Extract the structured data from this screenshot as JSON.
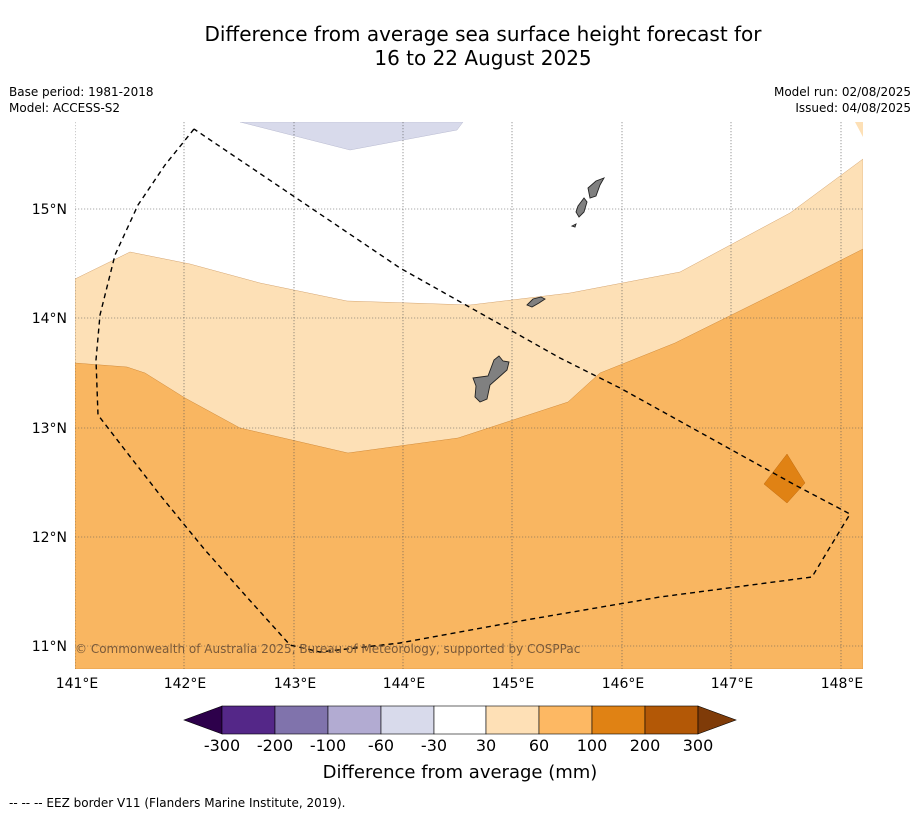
{
  "title": {
    "line1": "Difference from average sea surface height forecast for",
    "line2": "16 to 22 August 2025"
  },
  "meta_left": {
    "base_period": "Base period: 1981-2018",
    "model": "Model: ACCESS-S2"
  },
  "meta_right": {
    "model_run": "Model run: 02/08/2025",
    "issued": "Issued: 04/08/2025"
  },
  "map": {
    "lat_labels": [
      "15°N",
      "14°N",
      "13°N",
      "12°N",
      "11°N"
    ],
    "lon_labels": [
      "141°E",
      "142°E",
      "143°E",
      "144°E",
      "145°E",
      "146°E",
      "147°E",
      "148°E"
    ],
    "copyright": "© Commonwealth of Australia 2025, Bureau of Meteorology, supported by COSPPac",
    "colors": {
      "band_30_60": "#fde0b6",
      "band_60_100": "#f9b661",
      "band_100_200": "#e08214",
      "band_neg_60_30": "#d8daeb",
      "land": "#808080"
    }
  },
  "colorbar": {
    "ticks": [
      "-300",
      "-200",
      "-100",
      "-60",
      "-30",
      "30",
      "60",
      "100",
      "200",
      "300"
    ],
    "colors": [
      "#2d004b",
      "#542788",
      "#8073ac",
      "#b2abd2",
      "#d8daeb",
      "#ffffff",
      "#fee0b6",
      "#fdb863",
      "#e08214",
      "#b35806",
      "#7f3b08"
    ],
    "label": "Difference from average (mm)"
  },
  "footer": "--  --  -- EEZ border V11 (Flanders Marine Institute, 2019)."
}
